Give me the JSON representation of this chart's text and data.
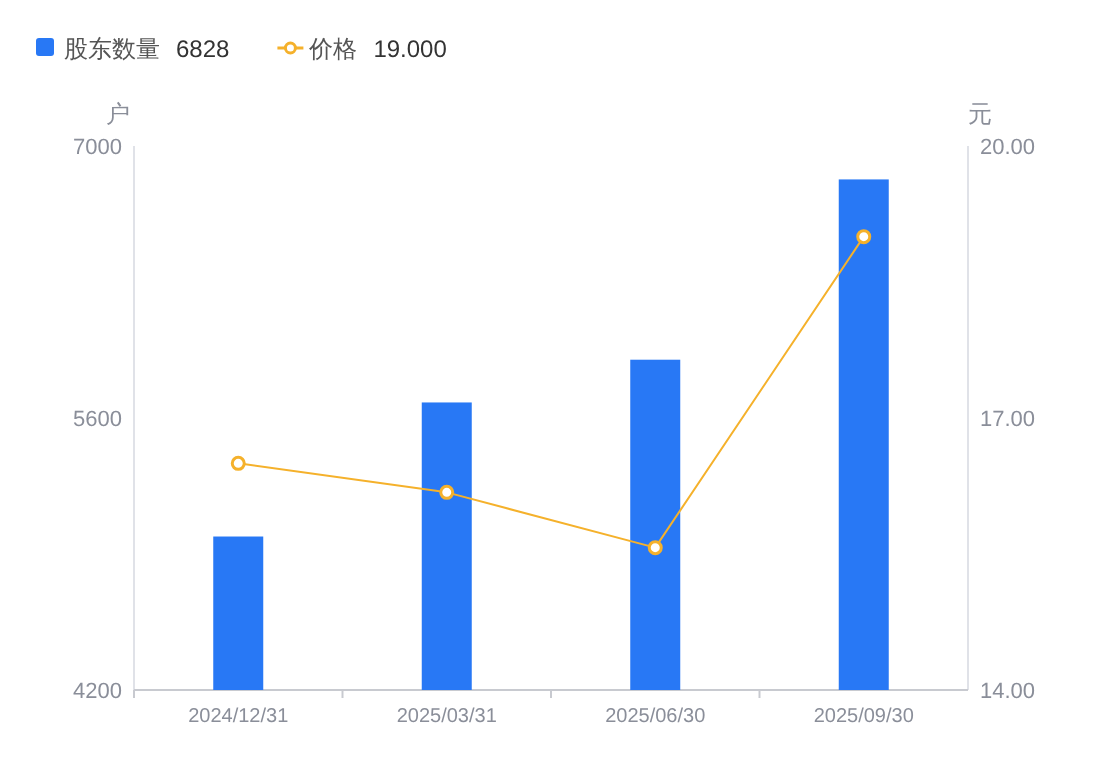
{
  "chart_data": {
    "type": "bar",
    "categories": [
      "2024/12/31",
      "2025/03/31",
      "2025/06/30",
      "2025/09/30"
    ],
    "series": [
      {
        "name": "股东数量",
        "color": "#2878f5",
        "values": [
          4990,
          5680,
          5900,
          6828
        ]
      },
      {
        "name": "价格",
        "type": "line",
        "axis": "y2",
        "color": "#f5b12b",
        "marker": "circle",
        "values": [
          16.5,
          16.18,
          15.57,
          19.0
        ]
      }
    ],
    "ylabel": "户",
    "y2label": "元",
    "ylim": [
      4200,
      7000
    ],
    "yticks": [
      4200,
      5600,
      7000
    ],
    "y2lim": [
      14,
      20
    ],
    "y2ticks": [
      {
        "value": 14,
        "label": "14.00"
      },
      {
        "value": 17,
        "label": "17.00"
      },
      {
        "value": 20,
        "label": "20.00"
      }
    ],
    "legend": "top left",
    "annotations": [
      "6828",
      "19.000"
    ]
  }
}
